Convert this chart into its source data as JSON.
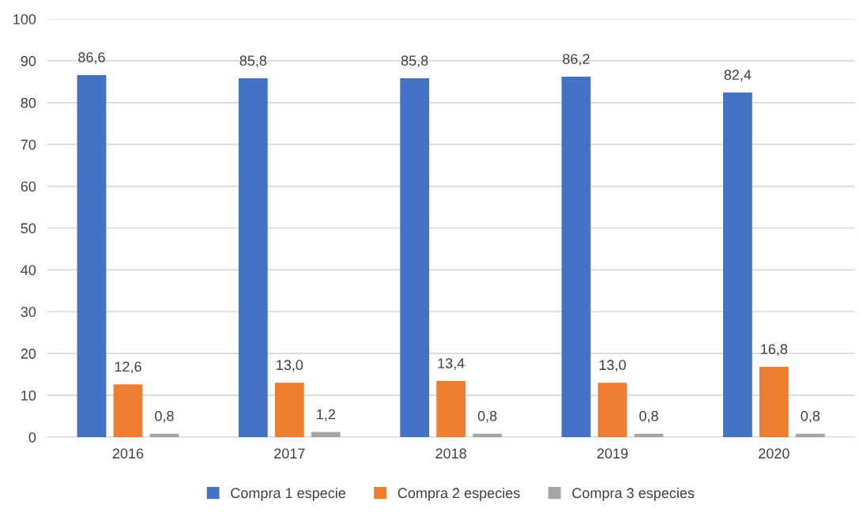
{
  "chart_data": {
    "type": "bar",
    "categories": [
      "2016",
      "2017",
      "2018",
      "2019",
      "2020"
    ],
    "series": [
      {
        "name": "Compra 1 especie",
        "color": "#4472c4",
        "values": [
          86.6,
          85.8,
          85.8,
          86.2,
          82.4
        ],
        "value_labels": [
          "86,6",
          "85,8",
          "85,8",
          "86,2",
          "82,4"
        ]
      },
      {
        "name": "Compra 2 especies",
        "color": "#ed7d31",
        "values": [
          12.6,
          13.0,
          13.4,
          13.0,
          16.8
        ],
        "value_labels": [
          "12,6",
          "13,0",
          "13,4",
          "13,0",
          "16,8"
        ]
      },
      {
        "name": "Compra 3 especies",
        "color": "#a5a5a5",
        "values": [
          0.8,
          1.2,
          0.8,
          0.8,
          0.8
        ],
        "value_labels": [
          "0,8",
          "1,2",
          "0,8",
          "0,8",
          "0,8"
        ]
      }
    ],
    "ylim": [
      0,
      100
    ],
    "yticks": [
      0,
      10,
      20,
      30,
      40,
      50,
      60,
      70,
      80,
      90,
      100
    ],
    "grid": "y",
    "legend": "bottom"
  }
}
